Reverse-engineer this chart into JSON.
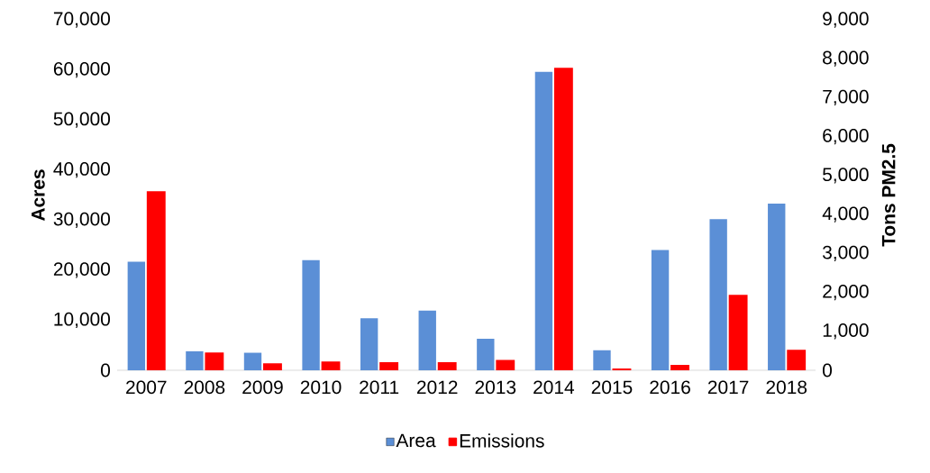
{
  "chart_data": {
    "type": "bar",
    "categories": [
      "2007",
      "2008",
      "2009",
      "2010",
      "2011",
      "2012",
      "2013",
      "2014",
      "2015",
      "2016",
      "2017",
      "2018"
    ],
    "ylabel": "Acres",
    "y2label": "Tons PM2.5",
    "series": [
      {
        "name": "Area",
        "color": "#5b8fd6",
        "values": [
          21700,
          3800,
          3500,
          22000,
          10400,
          11900,
          6300,
          59600,
          4000,
          24000,
          30200,
          33300
        ]
      },
      {
        "name": "Emissions",
        "color": "#ff0000",
        "axis": "y2",
        "values": [
          4580,
          440,
          160,
          210,
          190,
          190,
          250,
          7750,
          30,
          120,
          1920,
          510
        ]
      }
    ],
    "ylim": [
      0,
      70000
    ],
    "yticks": [
      {
        "value": 0,
        "label": "0"
      },
      {
        "value": 10000,
        "label": "10,000"
      },
      {
        "value": 20000,
        "label": "20,000"
      },
      {
        "value": 30000,
        "label": "30,000"
      },
      {
        "value": 40000,
        "label": "40,000"
      },
      {
        "value": 50000,
        "label": "50,000"
      },
      {
        "value": 60000,
        "label": "60,000"
      },
      {
        "value": 70000,
        "label": "70,000"
      }
    ],
    "y2lim": [
      0,
      9000
    ],
    "y2ticks": [
      {
        "value": 0,
        "label": "0"
      },
      {
        "value": 1000,
        "label": "1,000"
      },
      {
        "value": 2000,
        "label": "2,000"
      },
      {
        "value": 3000,
        "label": "3,000"
      },
      {
        "value": 4000,
        "label": "4,000"
      },
      {
        "value": 5000,
        "label": "5,000"
      },
      {
        "value": 6000,
        "label": "6,000"
      },
      {
        "value": 7000,
        "label": "7,000"
      },
      {
        "value": 8000,
        "label": "8,000"
      },
      {
        "value": 9000,
        "label": "9,000"
      }
    ],
    "legend": "bottom"
  }
}
